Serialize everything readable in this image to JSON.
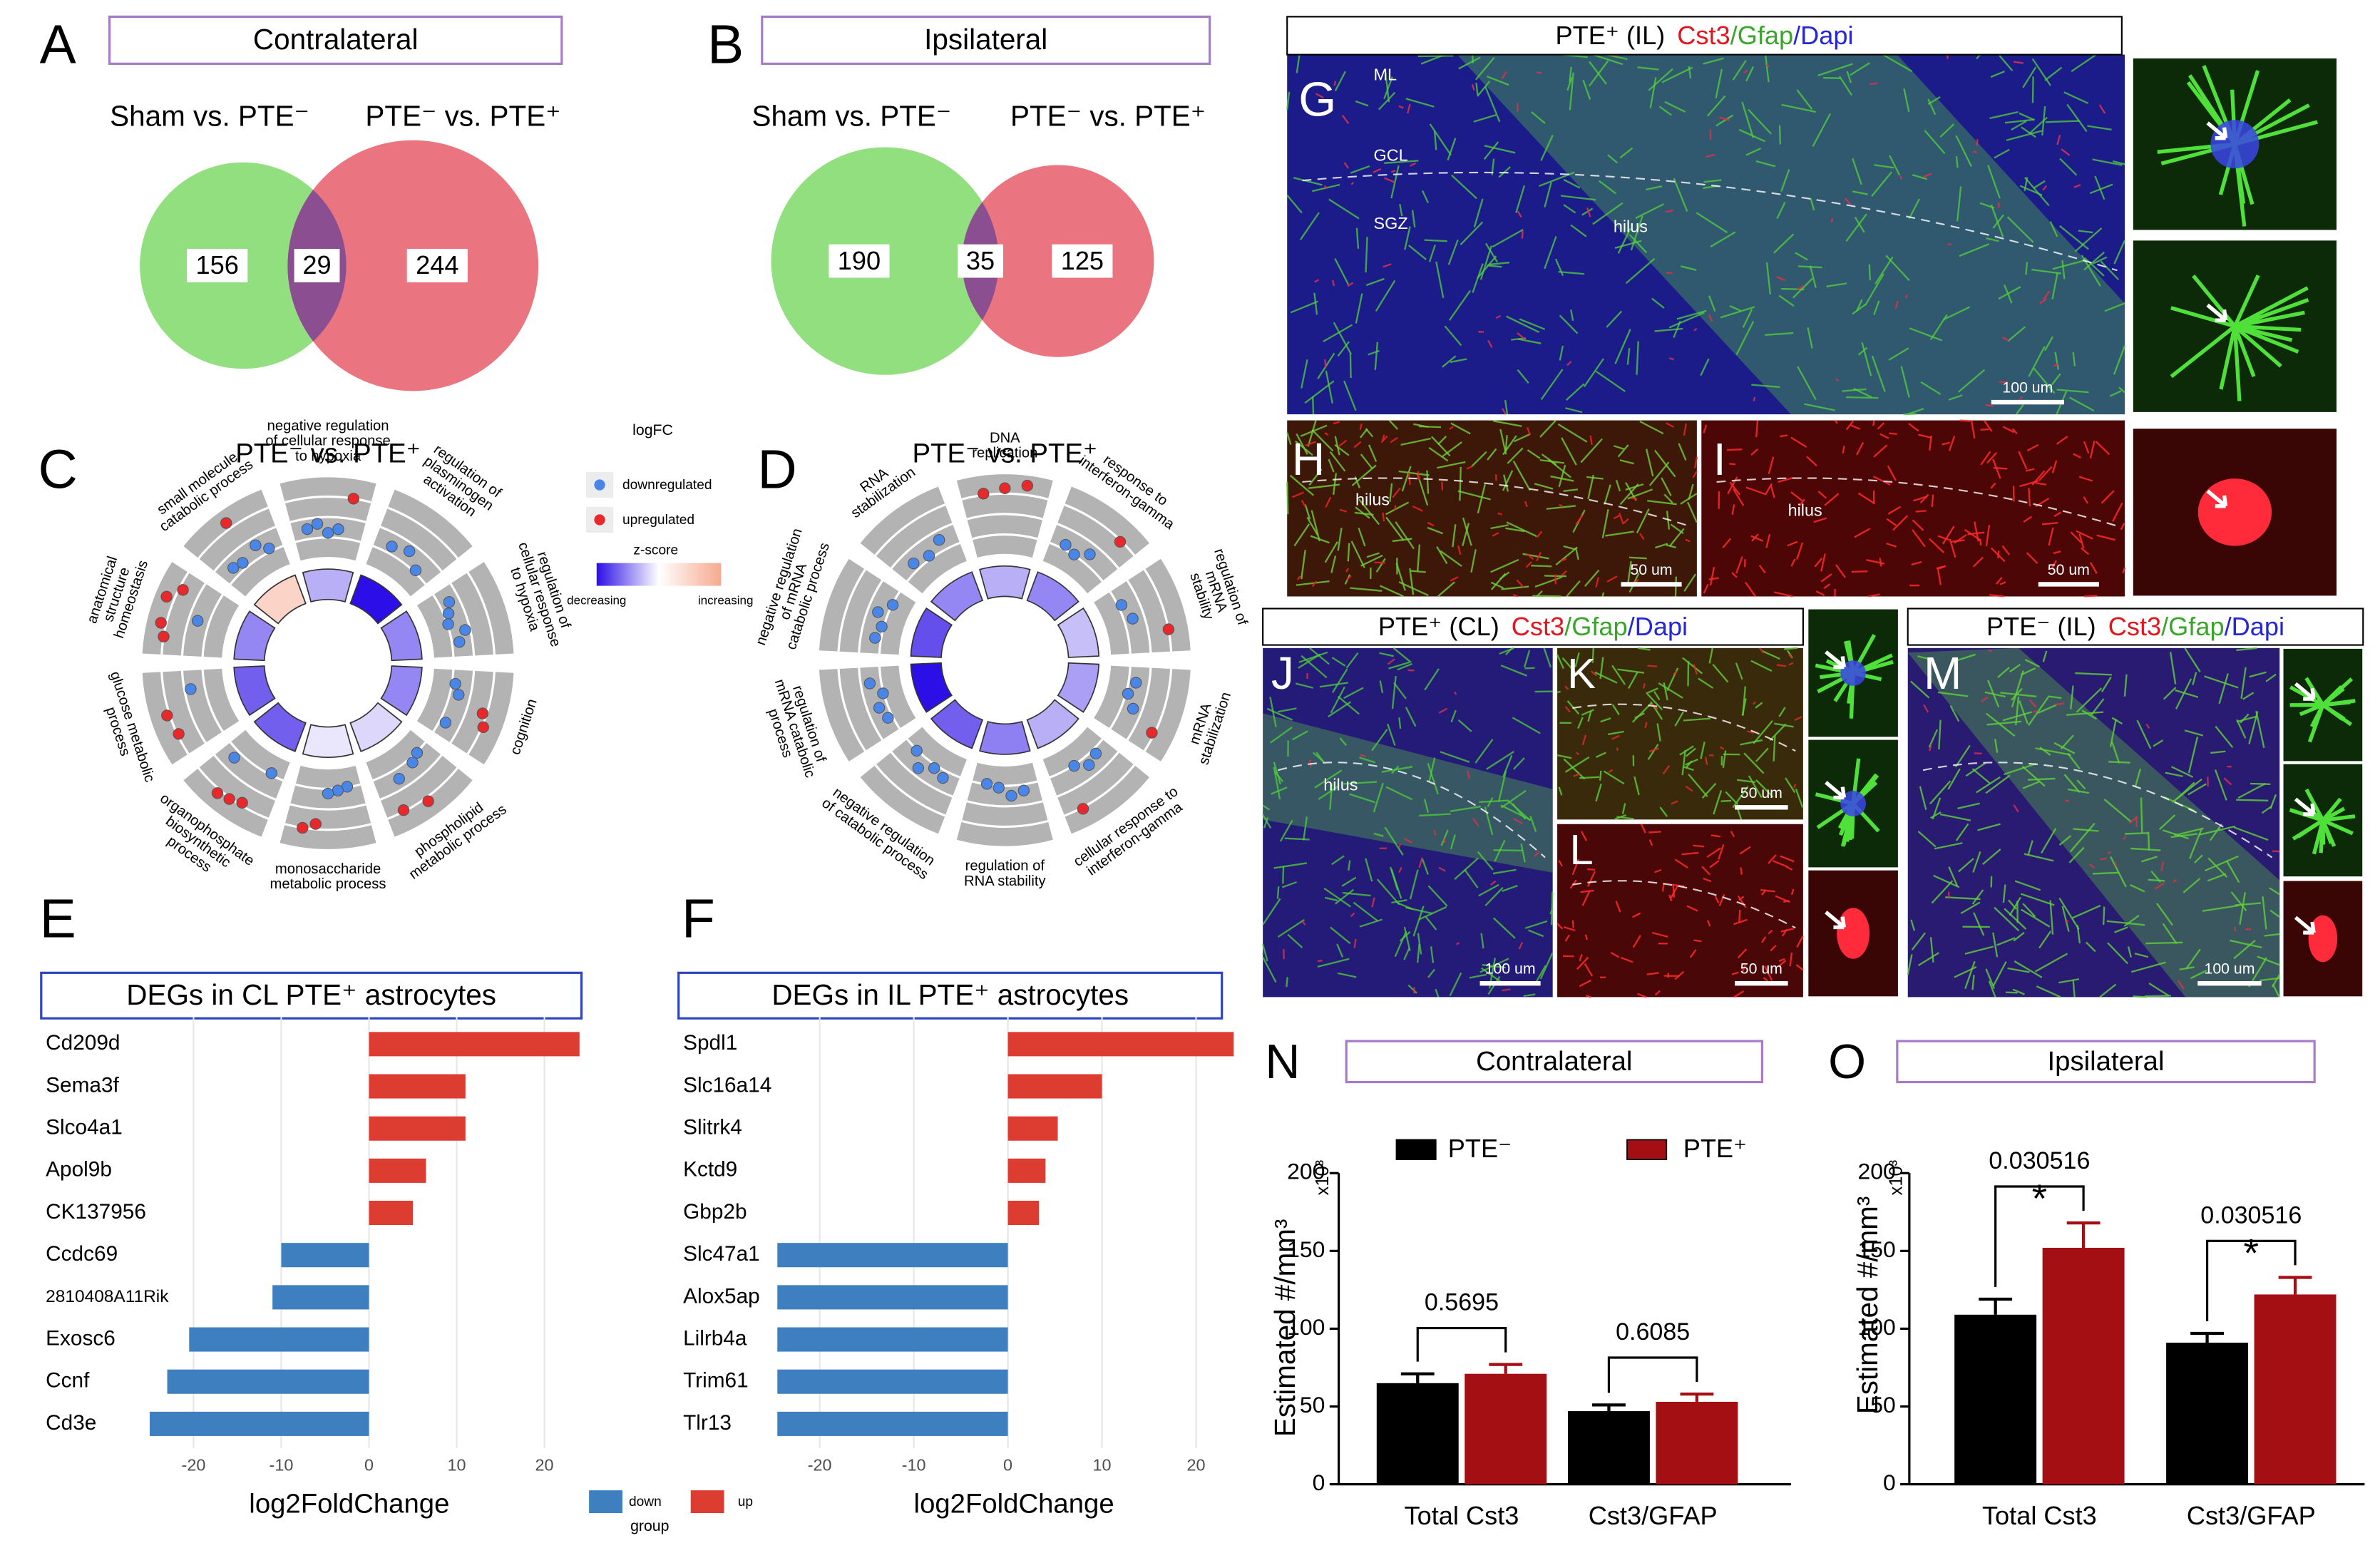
{
  "panel_letters": [
    "A",
    "B",
    "C",
    "D",
    "E",
    "F",
    "G",
    "H",
    "I",
    "J",
    "K",
    "L",
    "M",
    "N",
    "O"
  ],
  "micrographs": {
    "G": {
      "title": [
        "PTE⁺ (IL)",
        "Cst3",
        "/Gfap",
        "/Dapi"
      ],
      "title_colors": [
        "#000000",
        "#e3141e",
        "#3aa52b",
        "#2626d4"
      ],
      "labels": [
        "ML",
        "GCL",
        "SGZ",
        "hilus",
        "100 um"
      ]
    },
    "H": {
      "labels": [
        "hilus",
        "50 um"
      ]
    },
    "I": {
      "labels": [
        "hilus",
        "50 um"
      ]
    },
    "J": {
      "title": [
        "PTE⁺ (CL)",
        "Cst3",
        "/Gfap",
        "/Dapi"
      ],
      "title_colors": [
        "#000000",
        "#e3141e",
        "#3aa52b",
        "#2626d4"
      ],
      "labels": [
        "hilus",
        "100 um"
      ]
    },
    "K": {
      "labels": [
        "50 um"
      ]
    },
    "L": {
      "labels": [
        "50 um"
      ]
    },
    "M": {
      "title": [
        "PTE⁻ (IL)",
        "Cst3",
        "/Gfap",
        "/Dapi"
      ],
      "title_colors": [
        "#000000",
        "#e3141e",
        "#3aa52b",
        "#2626d4"
      ],
      "labels": [
        "100 um"
      ]
    }
  },
  "chart_data": [
    {
      "type": "venn",
      "title": "Contralateral",
      "sets": [
        "Sham vs. PTE⁻",
        "PTE⁻ vs. PTE⁺"
      ],
      "colors": [
        "#92df80",
        "#ea7580"
      ],
      "overlap_color": "#8b4f91",
      "values": [
        156,
        29,
        244
      ]
    },
    {
      "type": "venn",
      "title": "Ipsilateral",
      "sets": [
        "Sham vs. PTE⁻",
        "PTE⁻ vs. PTE⁺"
      ],
      "colors": [
        "#92df80",
        "#ea7580"
      ],
      "overlap_color": "#8b4f91",
      "values": [
        190,
        35,
        125
      ]
    },
    {
      "type": "gocircle",
      "title": "PTE⁻ vs. PTE⁺",
      "rlim": [
        -3,
        3
      ],
      "zlim": [
        -3,
        3
      ],
      "zscore_colors": [
        "#2b0fe6",
        "#ffffff",
        "#f6a98f"
      ],
      "point_colors": [
        "#4a86e8",
        "#e8282b"
      ],
      "legend_title": "logFC",
      "point_labels": [
        "downregulated",
        "upregulated"
      ],
      "zscore_title": "z-score",
      "zscore_labels": [
        "decreasing",
        "increasing"
      ],
      "terms": [
        {
          "label": [
            "negative regulation",
            "of cellular response",
            "to hypoxia"
          ],
          "zscore": -1,
          "logfc": [
            -0.8,
            -0.5,
            -1.2,
            -0.9,
            1.5
          ]
        },
        {
          "label": [
            "regulation of",
            "plasminogen",
            "activation"
          ],
          "zscore": -3,
          "logfc": [
            -1.0,
            -0.6,
            -1.4
          ]
        },
        {
          "label": [
            "regulation of",
            "cellular response",
            "to hypoxia"
          ],
          "zscore": -1.5,
          "logfc": [
            -0.8,
            -1.2,
            -1.5,
            -0.4,
            -1.0
          ]
        },
        {
          "label": [
            "cognition"
          ],
          "zscore": -1.5,
          "logfc": [
            -1.3,
            -0.9,
            1.2,
            1.6,
            -1.1
          ]
        },
        {
          "label": [
            "phospholipid",
            "metabolic process"
          ],
          "zscore": -0.5,
          "logfc": [
            -1.5,
            -1.2,
            1.8,
            -0.8,
            1.4
          ]
        },
        {
          "label": [
            "monosaccharide",
            "metabolic process"
          ],
          "zscore": -0.3,
          "logfc": [
            -1.6,
            -1.4,
            -1.2,
            1.1,
            1.5
          ]
        },
        {
          "label": [
            "organophosphate",
            "biosynthetic",
            "process"
          ],
          "zscore": -2,
          "logfc": [
            -1.7,
            1.3,
            1.6,
            1.8,
            -1.0
          ]
        },
        {
          "label": [
            "glucose metabolic",
            "process"
          ],
          "zscore": -2,
          "logfc": [
            1.4,
            1.7,
            -0.5
          ]
        },
        {
          "label": [
            "anatomical",
            "structure",
            "homeostasis"
          ],
          "zscore": -1.5,
          "logfc": [
            1.5,
            1.9,
            -0.7,
            2.1,
            1.2
          ]
        },
        {
          "label": [
            "small molecule",
            "catabolic process"
          ],
          "zscore": 1.5,
          "logfc": [
            -0.9,
            -1.1,
            2.0,
            -0.6,
            -1.3
          ]
        }
      ]
    },
    {
      "type": "gocircle",
      "title": "PTE⁻ vs. PTE⁺",
      "rlim": [
        -3,
        3
      ],
      "zlim": [
        -3,
        3
      ],
      "zscore_colors": [
        "#2b0fe6",
        "#ffffff",
        "#f6a98f"
      ],
      "point_colors": [
        "#4a86e8",
        "#e8282b"
      ],
      "terms": [
        {
          "label": [
            "DNA",
            "replication"
          ],
          "zscore": -1,
          "logfc": [
            1.6,
            1.9,
            2.2
          ]
        },
        {
          "label": [
            "response to",
            "interferon-gamma"
          ],
          "zscore": -1.5,
          "logfc": [
            -1.2,
            -1.5,
            -0.8,
            1.4
          ]
        },
        {
          "label": [
            "regulation of",
            "mRNA",
            "stability"
          ],
          "zscore": -0.8,
          "logfc": [
            -1.3,
            -0.9,
            1.5
          ]
        },
        {
          "label": [
            "mRNA",
            "stabilization"
          ],
          "zscore": -1.2,
          "logfc": [
            -1.0,
            -1.4,
            -0.7,
            1.3
          ]
        },
        {
          "label": [
            "cellular response to",
            "interferon-gamma"
          ],
          "zscore": -1,
          "logfc": [
            -1.2,
            -0.9,
            -1.5,
            1.6
          ]
        },
        {
          "label": [
            "regulation of",
            "RNA stability"
          ],
          "zscore": -1.6,
          "logfc": [
            -1.1,
            -0.8,
            -1.4,
            -1.6
          ]
        },
        {
          "label": [
            "negative regulation",
            "of catabolic process"
          ],
          "zscore": -2,
          "logfc": [
            -1.0,
            -1.3,
            -0.6,
            -1.5
          ]
        },
        {
          "label": [
            "regulation of",
            "mRNA catabolic",
            "process"
          ],
          "zscore": -3,
          "logfc": [
            -1.2,
            -0.9,
            -1.5,
            -0.7
          ]
        },
        {
          "label": [
            "negative regulation",
            "of mRNA",
            "catabolic process"
          ],
          "zscore": -2.2,
          "logfc": [
            -1.1,
            -1.4,
            -0.8,
            -1.6
          ]
        },
        {
          "label": [
            "RNA",
            "stabilization"
          ],
          "zscore": -1.5,
          "logfc": [
            -1.0,
            -1.3,
            -0.7
          ]
        }
      ]
    },
    {
      "type": "barh",
      "title": "DEGs in CL PTE⁺ astrocytes",
      "xlabel": "log2FoldChange",
      "legend_title": "group",
      "categories": [
        "Cd209d",
        "Sema3f",
        "Slco4a1",
        "Apol9b",
        "CK137956",
        "Ccdc69",
        "2810408A11Rik",
        "Exosc6",
        "Ccnf",
        "Cd3e"
      ],
      "series": [
        {
          "name": "down",
          "color": "#3d7fbf",
          "values": [
            null,
            null,
            null,
            null,
            null,
            -10,
            -11,
            -20.5,
            -23,
            -25
          ]
        },
        {
          "name": "up",
          "color": "#dd3c30",
          "values": [
            24,
            11,
            11,
            6.5,
            5,
            null,
            null,
            null,
            null,
            null
          ]
        }
      ],
      "xlim": [
        -25.5,
        25
      ],
      "xticks": [
        -20,
        -10,
        0,
        10,
        20
      ],
      "grid": true
    },
    {
      "type": "barh",
      "title": "DEGs in IL PTE⁺ astrocytes",
      "xlabel": "log2FoldChange",
      "categories": [
        "Spdl1",
        "Slc16a14",
        "Slitrk4",
        "Kctd9",
        "Gbp2b",
        "Slc47a1",
        "Alox5ap",
        "Lilrb4a",
        "Trim61",
        "Tlr13"
      ],
      "series": [
        {
          "color": "#3d7fbf",
          "values": [
            null,
            null,
            null,
            null,
            null,
            -24.5,
            -24.5,
            -24.5,
            -24.5,
            -24.5
          ]
        },
        {
          "color": "#dd3c30",
          "values": [
            24,
            10,
            5.3,
            4,
            3.3,
            null,
            null,
            null,
            null,
            null
          ]
        }
      ],
      "xlim": [
        -25,
        25
      ],
      "xticks": [
        -20,
        -10,
        0,
        10,
        20
      ],
      "grid": true
    },
    {
      "type": "bar",
      "title": "Contralateral",
      "ylabel": "Estimated #/mm³",
      "yunit": "x10³",
      "categories": [
        "Total Cst3",
        "Cst3/GFAP"
      ],
      "series": [
        {
          "name": "PTE⁻",
          "color": "#000000",
          "values": [
            65,
            47
          ],
          "errors": [
            6,
            4
          ]
        },
        {
          "name": "PTE⁺",
          "color": "#a30f12",
          "values": [
            71,
            53
          ],
          "errors": [
            6,
            5
          ]
        }
      ],
      "ylim": [
        0,
        200
      ],
      "yticks": [
        0,
        50,
        100,
        150,
        200
      ],
      "annotations": [
        {
          "category": 0,
          "text": "0.5695"
        },
        {
          "category": 1,
          "text": "0.6085"
        }
      ]
    },
    {
      "type": "bar",
      "title": "Ipsilateral",
      "ylabel": "Estimated #/mm³",
      "yunit": "x10³",
      "categories": [
        "Total Cst3",
        "Cst3/GFAP"
      ],
      "series": [
        {
          "color": "#000000",
          "values": [
            109,
            91
          ],
          "errors": [
            10,
            6
          ]
        },
        {
          "color": "#a30f12",
          "values": [
            152,
            122
          ],
          "errors": [
            16,
            11
          ]
        }
      ],
      "ylim": [
        0,
        200
      ],
      "yticks": [
        0,
        50,
        100,
        150,
        200
      ],
      "annotations": [
        {
          "category": 0,
          "text": "0.030516",
          "marker": "*"
        },
        {
          "category": 1,
          "text": "0.030516",
          "marker": "*"
        }
      ]
    }
  ]
}
